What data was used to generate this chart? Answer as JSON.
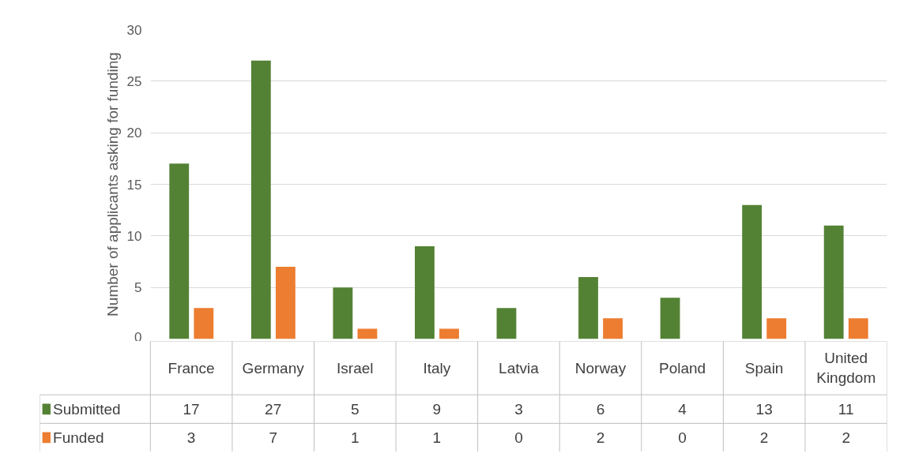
{
  "chart_data": {
    "type": "bar",
    "ylabel": "Number of applicants asking for funding",
    "categories": [
      "France",
      "Germany",
      "Israel",
      "Italy",
      "Latvia",
      "Norway",
      "Poland",
      "Spain",
      "United Kingdom"
    ],
    "series": [
      {
        "name": "Submitted",
        "color": "#548235",
        "values": [
          17,
          27,
          5,
          9,
          3,
          6,
          4,
          13,
          11
        ]
      },
      {
        "name": "Funded",
        "color": "#ed7d31",
        "values": [
          3,
          7,
          1,
          1,
          0,
          2,
          0,
          2,
          2
        ]
      }
    ],
    "ylim": [
      0,
      30
    ],
    "yticks": [
      0,
      5,
      10,
      15,
      20,
      25,
      30
    ],
    "grid": "y",
    "legend": "bottom",
    "data_labels": true
  }
}
